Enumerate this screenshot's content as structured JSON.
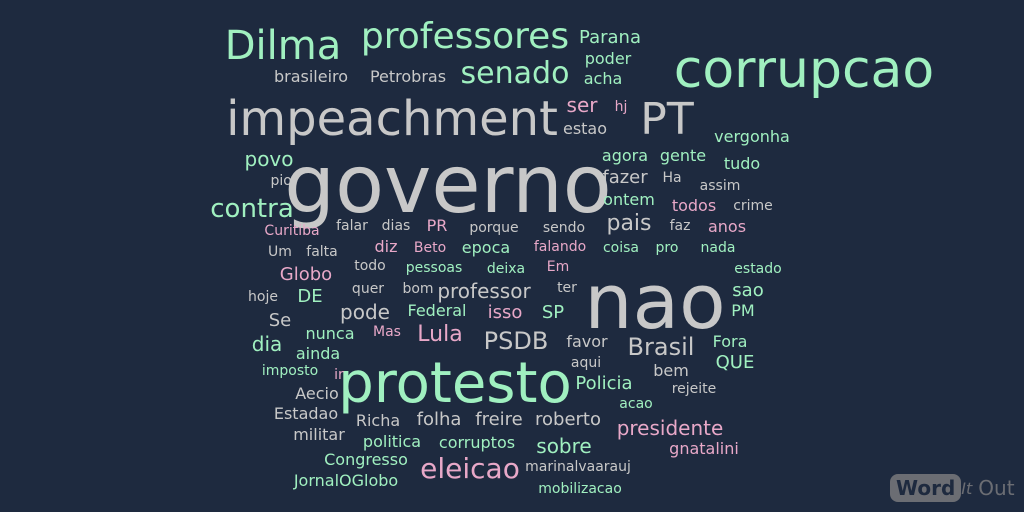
{
  "colors": {
    "background": "#1e2a3f",
    "green": "#a0f0c0",
    "pink": "#e8a8c8",
    "gray": "#c8c8c8",
    "logo": "#6b6d73"
  },
  "logo": {
    "part1": "Word",
    "part2": "It",
    "part3": "Out"
  },
  "words": [
    {
      "text": "governo",
      "c": "#c8c8c8"
    },
    {
      "text": "nao",
      "c": "#c8c8c8"
    },
    {
      "text": "protesto",
      "c": "#a0f0c0"
    },
    {
      "text": "corrupcao",
      "c": "#a0f0c0"
    },
    {
      "text": "impeachment",
      "c": "#c8c8c8"
    },
    {
      "text": "Dilma",
      "c": "#a0f0c0"
    },
    {
      "text": "PT",
      "c": "#c8c8c8"
    },
    {
      "text": "professores",
      "c": "#a0f0c0"
    },
    {
      "text": "senado",
      "c": "#a0f0c0"
    },
    {
      "text": "eleicao",
      "c": "#e8a8c8"
    },
    {
      "text": "contra",
      "c": "#a0f0c0"
    },
    {
      "text": "Brasil",
      "c": "#c8c8c8"
    },
    {
      "text": "PSDB",
      "c": "#c8c8c8"
    },
    {
      "text": "Lula",
      "c": "#e8a8c8"
    },
    {
      "text": "pais",
      "c": "#c8c8c8"
    },
    {
      "text": "professor",
      "c": "#c8c8c8"
    },
    {
      "text": "sobre",
      "c": "#a0f0c0"
    },
    {
      "text": "presidente",
      "c": "#e8a8c8"
    },
    {
      "text": "povo",
      "c": "#a0f0c0"
    },
    {
      "text": "ser",
      "c": "#e8a8c8"
    },
    {
      "text": "dia",
      "c": "#a0f0c0"
    },
    {
      "text": "pode",
      "c": "#c8c8c8"
    },
    {
      "text": "isso",
      "c": "#e8a8c8"
    },
    {
      "text": "SP",
      "c": "#a0f0c0"
    },
    {
      "text": "QUE",
      "c": "#a0f0c0"
    },
    {
      "text": "fazer",
      "c": "#c8c8c8"
    },
    {
      "text": "Globo",
      "c": "#e8a8c8"
    },
    {
      "text": "DE",
      "c": "#a0f0c0"
    },
    {
      "text": "Policia",
      "c": "#a0f0c0"
    },
    {
      "text": "folha",
      "c": "#c8c8c8"
    },
    {
      "text": "freire",
      "c": "#c8c8c8"
    },
    {
      "text": "roberto",
      "c": "#c8c8c8"
    },
    {
      "text": "Parana",
      "c": "#a0f0c0"
    },
    {
      "text": "brasileiro",
      "c": "#c8c8c8"
    },
    {
      "text": "Petrobras",
      "c": "#c8c8c8"
    },
    {
      "text": "poder",
      "c": "#a0f0c0"
    },
    {
      "text": "acha",
      "c": "#a0f0c0"
    },
    {
      "text": "hj",
      "c": "#e8a8c8"
    },
    {
      "text": "estao",
      "c": "#c8c8c8"
    },
    {
      "text": "vergonha",
      "c": "#a0f0c0"
    },
    {
      "text": "agora",
      "c": "#a0f0c0"
    },
    {
      "text": "gente",
      "c": "#a0f0c0"
    },
    {
      "text": "tudo",
      "c": "#a0f0c0"
    },
    {
      "text": "pior",
      "c": "#c8c8c8"
    },
    {
      "text": "Ha",
      "c": "#c8c8c8"
    },
    {
      "text": "assim",
      "c": "#c8c8c8"
    },
    {
      "text": "ontem",
      "c": "#a0f0c0"
    },
    {
      "text": "todos",
      "c": "#e8a8c8"
    },
    {
      "text": "crime",
      "c": "#c8c8c8"
    },
    {
      "text": "falar",
      "c": "#c8c8c8"
    },
    {
      "text": "dias",
      "c": "#c8c8c8"
    },
    {
      "text": "PR",
      "c": "#e8a8c8"
    },
    {
      "text": "porque",
      "c": "#c8c8c8"
    },
    {
      "text": "sendo",
      "c": "#c8c8c8"
    },
    {
      "text": "faz",
      "c": "#c8c8c8"
    },
    {
      "text": "anos",
      "c": "#e8a8c8"
    },
    {
      "text": "Curitiba",
      "c": "#e8a8c8"
    },
    {
      "text": "Um",
      "c": "#c8c8c8"
    },
    {
      "text": "falta",
      "c": "#c8c8c8"
    },
    {
      "text": "diz",
      "c": "#e8a8c8"
    },
    {
      "text": "Beto",
      "c": "#e8a8c8"
    },
    {
      "text": "epoca",
      "c": "#a0f0c0"
    },
    {
      "text": "falando",
      "c": "#e8a8c8"
    },
    {
      "text": "coisa",
      "c": "#a0f0c0"
    },
    {
      "text": "pro",
      "c": "#a0f0c0"
    },
    {
      "text": "nada",
      "c": "#a0f0c0"
    },
    {
      "text": "todo",
      "c": "#c8c8c8"
    },
    {
      "text": "pessoas",
      "c": "#a0f0c0"
    },
    {
      "text": "deixa",
      "c": "#a0f0c0"
    },
    {
      "text": "Em",
      "c": "#e8a8c8"
    },
    {
      "text": "estado",
      "c": "#a0f0c0"
    },
    {
      "text": "hoje",
      "c": "#c8c8c8"
    },
    {
      "text": "quer",
      "c": "#c8c8c8"
    },
    {
      "text": "bom",
      "c": "#c8c8c8"
    },
    {
      "text": "ter",
      "c": "#c8c8c8"
    },
    {
      "text": "sao",
      "c": "#a0f0c0"
    },
    {
      "text": "Se",
      "c": "#c8c8c8"
    },
    {
      "text": "Federal",
      "c": "#a0f0c0"
    },
    {
      "text": "PM",
      "c": "#a0f0c0"
    },
    {
      "text": "nunca",
      "c": "#a0f0c0"
    },
    {
      "text": "Mas",
      "c": "#e8a8c8"
    },
    {
      "text": "favor",
      "c": "#c8c8c8"
    },
    {
      "text": "Fora",
      "c": "#a0f0c0"
    },
    {
      "text": "ainda",
      "c": "#a0f0c0"
    },
    {
      "text": "aqui",
      "c": "#c8c8c8"
    },
    {
      "text": "imposto",
      "c": "#a0f0c0"
    },
    {
      "text": "ir",
      "c": "#e8a8c8"
    },
    {
      "text": "bem",
      "c": "#c8c8c8"
    },
    {
      "text": "rejeite",
      "c": "#c8c8c8"
    },
    {
      "text": "Aecio",
      "c": "#c8c8c8"
    },
    {
      "text": "acao",
      "c": "#a0f0c0"
    },
    {
      "text": "Estadao",
      "c": "#c8c8c8"
    },
    {
      "text": "Richa",
      "c": "#c8c8c8"
    },
    {
      "text": "militar",
      "c": "#c8c8c8"
    },
    {
      "text": "politica",
      "c": "#a0f0c0"
    },
    {
      "text": "corruptos",
      "c": "#a0f0c0"
    },
    {
      "text": "gnatalini",
      "c": "#e8a8c8"
    },
    {
      "text": "Congresso",
      "c": "#a0f0c0"
    },
    {
      "text": "marinalvaarauj",
      "c": "#c8c8c8"
    },
    {
      "text": "JornalOGlobo",
      "c": "#a0f0c0"
    },
    {
      "text": "mobilizacao",
      "c": "#a0f0c0"
    }
  ]
}
